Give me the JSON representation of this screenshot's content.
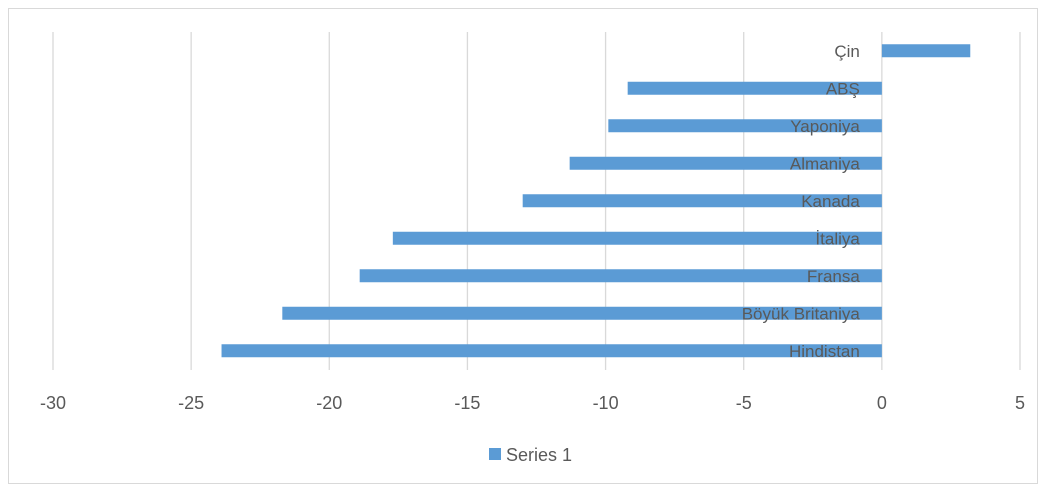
{
  "chart_data": {
    "type": "bar",
    "orientation": "horizontal",
    "categories": [
      "Çin",
      "ABŞ",
      "Yaponiya",
      "Almaniya",
      "Kanada",
      "İtaliya",
      "Fransa",
      "Böyük Britaniya",
      "Hindistan"
    ],
    "series": [
      {
        "name": "Series 1",
        "color": "#5b9bd5",
        "values": [
          3.2,
          -9.2,
          -9.9,
          -11.3,
          -13.0,
          -17.7,
          -18.9,
          -21.7,
          -23.9
        ]
      }
    ],
    "xlim": [
      -30,
      5
    ],
    "x_ticks": [
      -30,
      -25,
      -20,
      -15,
      -10,
      -5,
      0,
      5
    ],
    "grid": true,
    "legend_position": "bottom"
  }
}
